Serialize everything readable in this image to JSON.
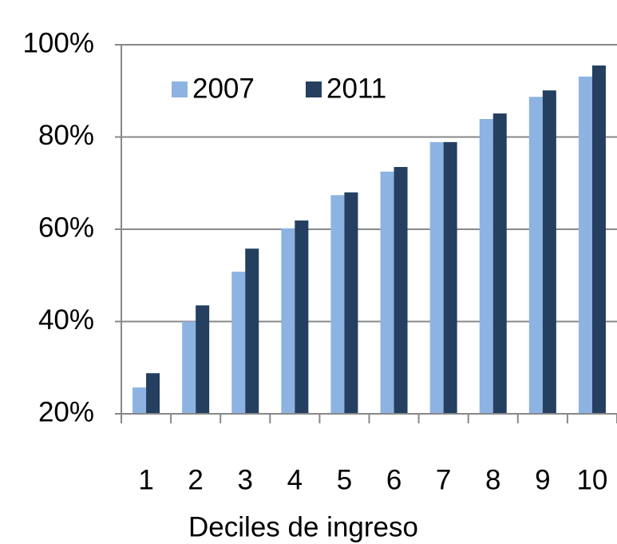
{
  "chart_data": {
    "type": "bar",
    "x_label": "Deciles de ingreso",
    "categories": [
      "1",
      "2",
      "3",
      "4",
      "5",
      "6",
      "7",
      "8",
      "9",
      "10"
    ],
    "series": [
      {
        "name": "2007",
        "color": "#8db3e2",
        "values": [
          25.7,
          40,
          50.8,
          60.2,
          67.4,
          72.5,
          78.9,
          83.9,
          88.7,
          93.1
        ]
      },
      {
        "name": "2011",
        "color": "#243f60",
        "values": [
          28.8,
          43.5,
          55.8,
          61.9,
          68,
          73.5,
          78.9,
          85.1,
          90.1,
          95.5
        ]
      }
    ],
    "ylim": [
      20,
      100
    ],
    "yticks": [
      {
        "value": 20,
        "label": "20%"
      },
      {
        "value": 40,
        "label": "40%"
      },
      {
        "value": 60,
        "label": "60%"
      },
      {
        "value": 80,
        "label": "80%"
      },
      {
        "value": 100,
        "label": "100%"
      }
    ],
    "grid": true,
    "legend": "top-left"
  }
}
